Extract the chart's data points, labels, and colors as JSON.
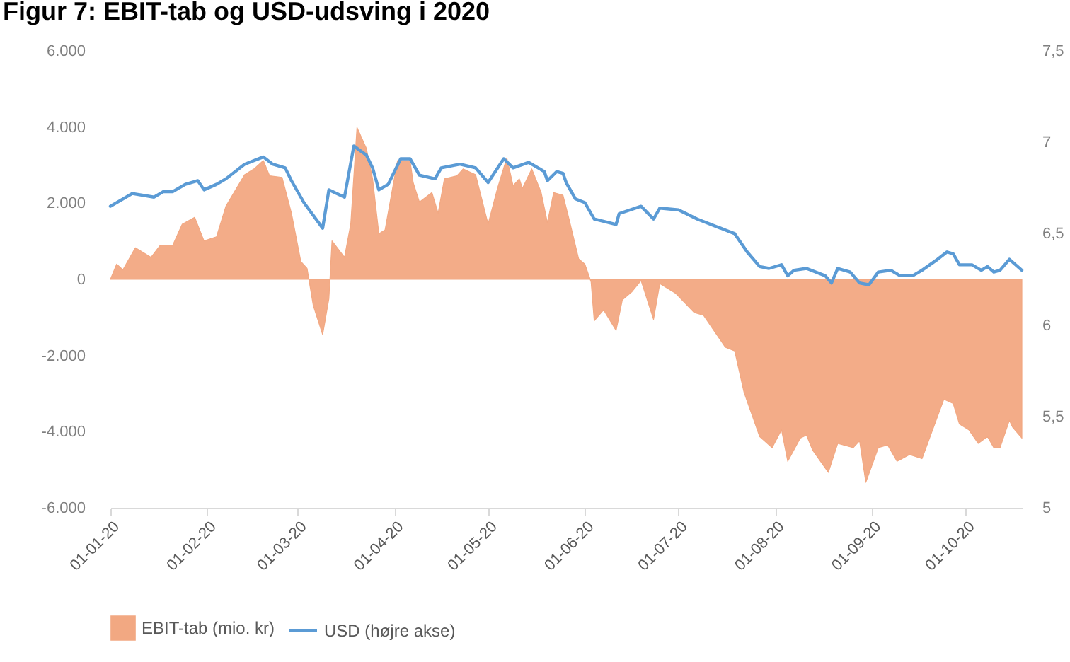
{
  "chart_data": {
    "type": "area",
    "title": "Figur 7: EBIT-tab og USD-udsving i 2020",
    "series": [
      {
        "name": "EBIT-tab (mio. kr)",
        "color": "#f2a882",
        "x": [
          "2020-01-01",
          "2020-01-03",
          "2020-01-05",
          "2020-01-09",
          "2020-01-14",
          "2020-01-17",
          "2020-01-21",
          "2020-01-24",
          "2020-01-28",
          "2020-01-31",
          "2020-02-04",
          "2020-02-07",
          "2020-02-13",
          "2020-02-16",
          "2020-02-19",
          "2020-02-21",
          "2020-02-25",
          "2020-02-28",
          "2020-03-02",
          "2020-03-04",
          "2020-03-06",
          "2020-03-09",
          "2020-03-11",
          "2020-03-12",
          "2020-03-16",
          "2020-03-18",
          "2020-03-20",
          "2020-03-23",
          "2020-03-25",
          "2020-03-27",
          "2020-03-29",
          "2020-04-02",
          "2020-04-06",
          "2020-04-07",
          "2020-04-09",
          "2020-04-13",
          "2020-04-15",
          "2020-04-17",
          "2020-04-21",
          "2020-04-23",
          "2020-04-27",
          "2020-05-01",
          "2020-05-04",
          "2020-05-07",
          "2020-05-09",
          "2020-05-11",
          "2020-05-12",
          "2020-05-15",
          "2020-05-18",
          "2020-05-20",
          "2020-05-22",
          "2020-05-25",
          "2020-05-27",
          "2020-05-30",
          "2020-06-01",
          "2020-06-03",
          "2020-06-04",
          "2020-06-07",
          "2020-06-11",
          "2020-06-13",
          "2020-06-16",
          "2020-06-19",
          "2020-06-23",
          "2020-06-25",
          "2020-06-30",
          "2020-07-06",
          "2020-07-09",
          "2020-07-16",
          "2020-07-19",
          "2020-07-22",
          "2020-07-27",
          "2020-07-31",
          "2020-08-03",
          "2020-08-05",
          "2020-08-09",
          "2020-08-11",
          "2020-08-13",
          "2020-08-18",
          "2020-08-21",
          "2020-08-26",
          "2020-08-28",
          "2020-08-30",
          "2020-09-03",
          "2020-09-06",
          "2020-09-09",
          "2020-09-13",
          "2020-09-17",
          "2020-09-24",
          "2020-09-27",
          "2020-09-29",
          "2020-10-02",
          "2020-10-05",
          "2020-10-08",
          "2020-10-10",
          "2020-10-12",
          "2020-10-15",
          "2020-10-16",
          "2020-10-19"
        ],
        "values": [
          0,
          400,
          250,
          830,
          580,
          900,
          900,
          1450,
          1630,
          1010,
          1120,
          1920,
          2750,
          2900,
          3120,
          2720,
          2680,
          1740,
          470,
          290,
          -690,
          -1450,
          -510,
          1010,
          580,
          1450,
          3990,
          3440,
          2640,
          1200,
          1300,
          3120,
          3120,
          2540,
          2030,
          2280,
          1740,
          2640,
          2720,
          2900,
          2750,
          1450,
          2390,
          3190,
          2460,
          2640,
          2390,
          2900,
          2280,
          1490,
          2280,
          2210,
          1560,
          540,
          400,
          -70,
          -1090,
          -800,
          -1340,
          -540,
          -330,
          -30,
          -1050,
          -110,
          -360,
          -870,
          -940,
          -1780,
          -1880,
          -2970,
          -4130,
          -4420,
          -3950,
          -4780,
          -4170,
          -4090,
          -4490,
          -5070,
          -4310,
          -4420,
          -4240,
          -5330,
          -4420,
          -4350,
          -4780,
          -4600,
          -4710,
          -3150,
          -3260,
          -3800,
          -3950,
          -4310,
          -4130,
          -4420,
          -4420,
          -3700,
          -3880,
          -4170
        ]
      },
      {
        "name": "USD (højre akse)",
        "type": "line",
        "axis": "y2",
        "color": "#5b9bd5",
        "x": [
          "2020-01-01",
          "2020-01-05",
          "2020-01-08",
          "2020-01-15",
          "2020-01-18",
          "2020-01-21",
          "2020-01-25",
          "2020-01-29",
          "2020-01-31",
          "2020-02-04",
          "2020-02-07",
          "2020-02-13",
          "2020-02-19",
          "2020-02-22",
          "2020-02-26",
          "2020-02-28",
          "2020-03-03",
          "2020-03-09",
          "2020-03-11",
          "2020-03-16",
          "2020-03-19",
          "2020-03-23",
          "2020-03-25",
          "2020-03-27",
          "2020-03-30",
          "2020-04-03",
          "2020-04-06",
          "2020-04-09",
          "2020-04-14",
          "2020-04-16",
          "2020-04-22",
          "2020-04-27",
          "2020-05-01",
          "2020-05-06",
          "2020-05-09",
          "2020-05-14",
          "2020-05-19",
          "2020-05-20",
          "2020-05-23",
          "2020-05-25",
          "2020-05-26",
          "2020-05-29",
          "2020-06-01",
          "2020-06-04",
          "2020-06-11",
          "2020-06-12",
          "2020-06-19",
          "2020-06-23",
          "2020-06-25",
          "2020-07-01",
          "2020-07-07",
          "2020-07-16",
          "2020-07-19",
          "2020-07-23",
          "2020-07-27",
          "2020-07-30",
          "2020-08-03",
          "2020-08-05",
          "2020-08-07",
          "2020-08-11",
          "2020-08-17",
          "2020-08-19",
          "2020-08-21",
          "2020-08-25",
          "2020-08-28",
          "2020-08-31",
          "2020-09-03",
          "2020-09-07",
          "2020-09-10",
          "2020-09-14",
          "2020-09-17",
          "2020-09-22",
          "2020-09-25",
          "2020-09-27",
          "2020-09-29",
          "2020-10-03",
          "2020-10-06",
          "2020-10-08",
          "2020-10-10",
          "2020-10-12",
          "2020-10-15",
          "2020-10-19"
        ],
        "values": [
          6.65,
          6.69,
          6.72,
          6.7,
          6.73,
          6.73,
          6.77,
          6.79,
          6.74,
          6.77,
          6.8,
          6.88,
          6.92,
          6.88,
          6.86,
          6.79,
          6.67,
          6.53,
          6.74,
          6.7,
          6.98,
          6.93,
          6.86,
          6.74,
          6.77,
          6.91,
          6.91,
          6.82,
          6.8,
          6.86,
          6.88,
          6.86,
          6.78,
          6.91,
          6.86,
          6.89,
          6.84,
          6.79,
          6.84,
          6.83,
          6.78,
          6.69,
          6.67,
          6.58,
          6.55,
          6.61,
          6.65,
          6.58,
          6.64,
          6.63,
          6.58,
          6.52,
          6.5,
          6.4,
          6.32,
          6.31,
          6.33,
          6.27,
          6.3,
          6.31,
          6.27,
          6.23,
          6.31,
          6.29,
          6.23,
          6.22,
          6.29,
          6.3,
          6.27,
          6.27,
          6.3,
          6.36,
          6.4,
          6.39,
          6.33,
          6.33,
          6.3,
          6.32,
          6.29,
          6.3,
          6.36,
          6.3
        ]
      }
    ],
    "xlim": [
      "2020-01-01",
      "2020-10-19"
    ],
    "xticks": [
      {
        "value": "2020-01-01",
        "label": "01-01-20"
      },
      {
        "value": "2020-02-01",
        "label": "01-02-20"
      },
      {
        "value": "2020-03-01",
        "label": "01-03-20"
      },
      {
        "value": "2020-04-01",
        "label": "01-04-20"
      },
      {
        "value": "2020-05-01",
        "label": "01-05-20"
      },
      {
        "value": "2020-06-01",
        "label": "01-06-20"
      },
      {
        "value": "2020-07-01",
        "label": "01-07-20"
      },
      {
        "value": "2020-08-01",
        "label": "01-08-20"
      },
      {
        "value": "2020-09-01",
        "label": "01-09-20"
      },
      {
        "value": "2020-10-01",
        "label": "01-10-20"
      }
    ],
    "ylim": [
      -6000,
      6000
    ],
    "yticks": [
      {
        "value": -6000,
        "label": "-6.000"
      },
      {
        "value": -4000,
        "label": "-4.000"
      },
      {
        "value": -2000,
        "label": "-2.000"
      },
      {
        "value": 0,
        "label": "0"
      },
      {
        "value": 2000,
        "label": "2.000"
      },
      {
        "value": 4000,
        "label": "4.000"
      },
      {
        "value": 6000,
        "label": "6.000"
      }
    ],
    "y2lim": [
      5,
      7.5
    ],
    "y2ticks": [
      {
        "value": 5,
        "label": "5"
      },
      {
        "value": 5.5,
        "label": "5,5"
      },
      {
        "value": 6,
        "label": "6"
      },
      {
        "value": 6.5,
        "label": "6,5"
      },
      {
        "value": 7,
        "label": "7"
      },
      {
        "value": 7.5,
        "label": "7,5"
      }
    ],
    "legend": "bottom"
  }
}
